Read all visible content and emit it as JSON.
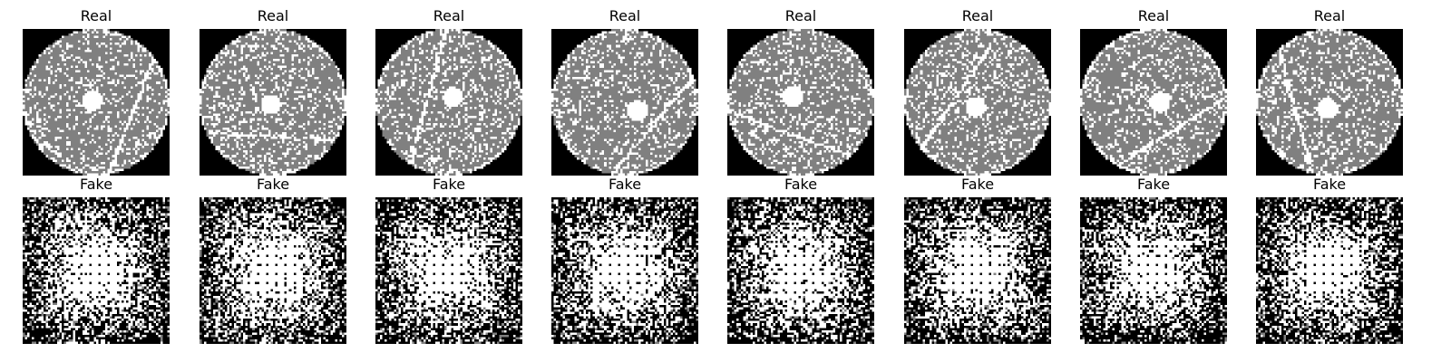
{
  "figure": {
    "rows": [
      {
        "row_label": "real-row",
        "titles": [
          "Real",
          "Real",
          "Real",
          "Real",
          "Real",
          "Real",
          "Real",
          "Real"
        ],
        "kind": "real"
      },
      {
        "row_label": "fake-row",
        "titles": [
          "Fake",
          "Fake",
          "Fake",
          "Fake",
          "Fake",
          "Fake",
          "Fake",
          "Fake"
        ],
        "kind": "fake"
      }
    ],
    "colors": {
      "background": "#000000",
      "wafer": "#808080",
      "defect": "#ffffff",
      "page": "#ffffff"
    }
  }
}
